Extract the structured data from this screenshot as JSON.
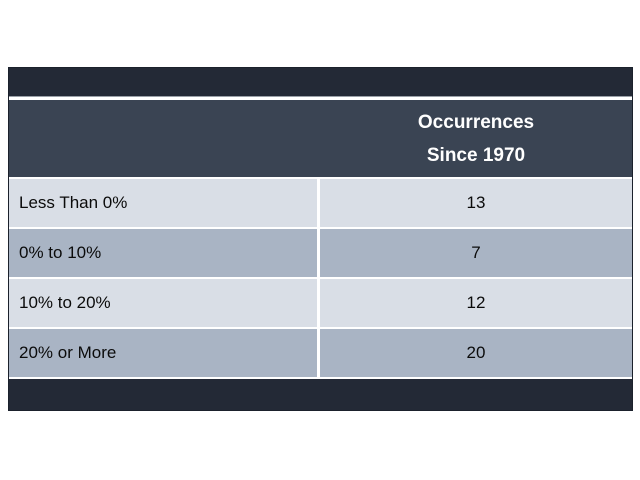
{
  "slide": {
    "background": "#ffffff"
  },
  "table": {
    "header": {
      "line1": "Occurrences",
      "line2": "Since 1970"
    },
    "rows": [
      {
        "label": "Less Than 0%",
        "value": "13"
      },
      {
        "label": "0% to 10%",
        "value": "7"
      },
      {
        "label": "10% to 20%",
        "value": "12"
      },
      {
        "label": "20% or More",
        "value": "20"
      }
    ]
  },
  "chart_data": {
    "type": "table",
    "columns": [
      "",
      "Occurrences Since 1970"
    ],
    "categories": [
      "Less Than 0%",
      "0% to 10%",
      "10% to 20%",
      "20% or More"
    ],
    "values": [
      13,
      7,
      12,
      20
    ],
    "title": ""
  },
  "colors": {
    "top_band": "#232936",
    "bottom_band": "#232936",
    "header_bg": "#3a4453",
    "row_light": "#d9dee6",
    "row_dark": "#a9b4c4",
    "divider": "#ffffff",
    "outer_border": "#1b212c",
    "header_text": "#ffffff",
    "row_text": "#0b0b0b"
  }
}
